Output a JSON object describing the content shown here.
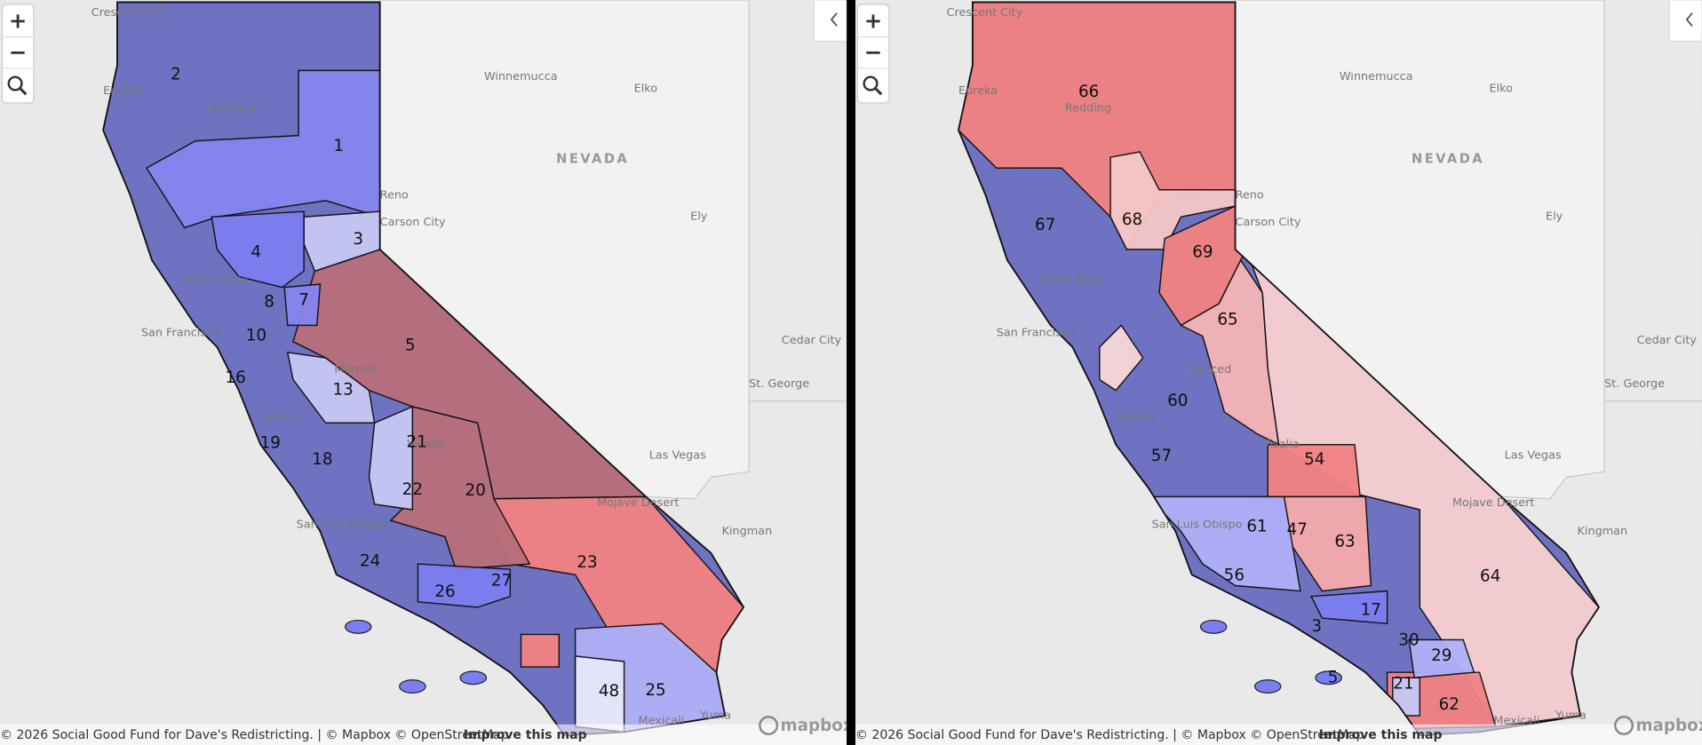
{
  "controls": {
    "zoom_in": "+",
    "zoom_out": "−"
  },
  "state_label": "NEVADA",
  "places": [
    "Crescent City",
    "Eureka",
    "Redding",
    "Winnemucca",
    "Elko",
    "Reno",
    "Ely",
    "Santa Rosa",
    "San Francisco",
    "Cedar City",
    "St. George",
    "Las Vegas",
    "Mojave Desert",
    "Kingman",
    "San Luis Obispo",
    "Mexicali",
    "Yuma",
    "Carson City",
    "Salinas",
    "Visalia",
    "Merced"
  ],
  "panels": [
    {
      "districts": [
        "2",
        "1",
        "4",
        "3",
        "8",
        "7",
        "10",
        "5",
        "16",
        "13",
        "19",
        "21",
        "18",
        "22",
        "20",
        "23",
        "24",
        "26",
        "27",
        "48",
        "25"
      ]
    },
    {
      "districts": [
        "66",
        "67",
        "68",
        "69",
        "65",
        "60",
        "57",
        "54",
        "61",
        "63",
        "64",
        "56",
        "17",
        "29",
        "30",
        "21",
        "5",
        "62",
        "47",
        "3"
      ]
    }
  ],
  "attribution": "© 2026 Social Good Fund for Dave's Redistricting. | © Mapbox © OpenStreetMap",
  "improve_link": "Improve this map",
  "logo": "mapbox"
}
